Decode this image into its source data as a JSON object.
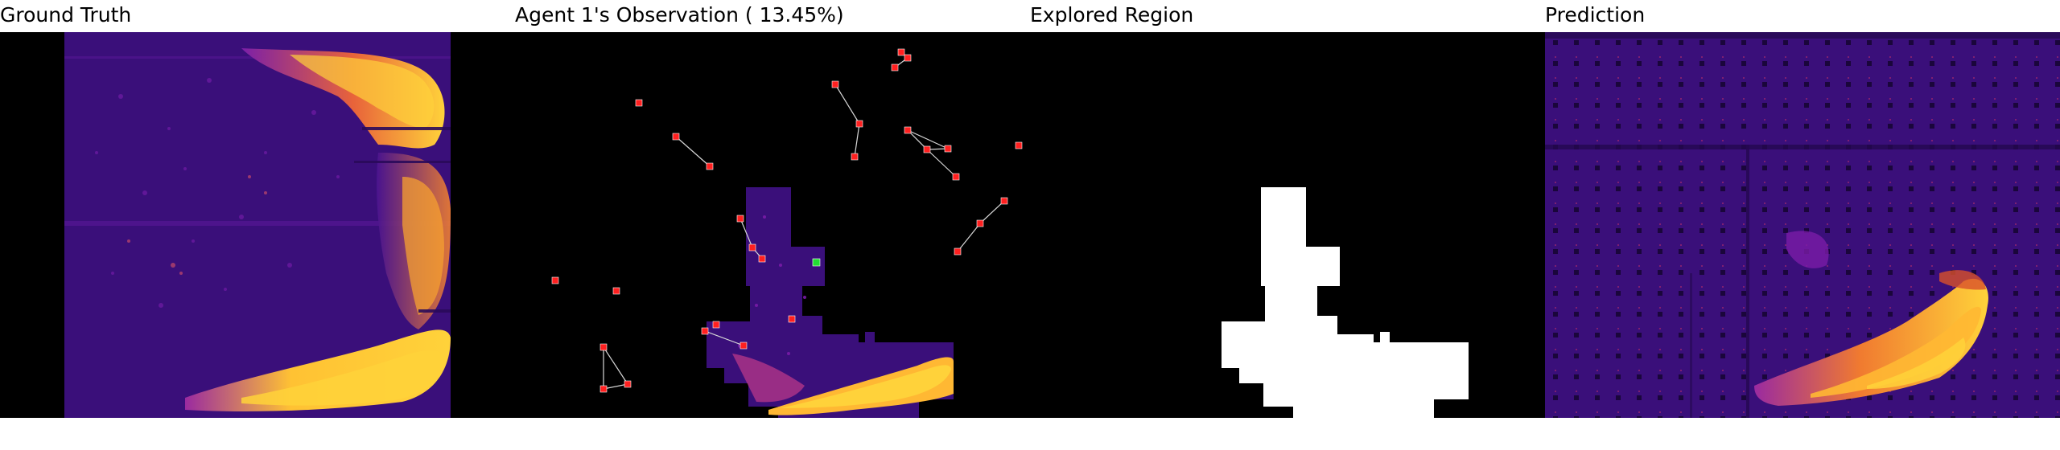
{
  "panels": {
    "ground_truth": {
      "title": "Ground Truth"
    },
    "observation": {
      "title": "Agent 1's Observation ( 13.45%)",
      "coverage_percent": 13.45
    },
    "explored": {
      "title": "Explored Region"
    },
    "prediction": {
      "title": "Prediction"
    }
  },
  "colors": {
    "background": "#000000",
    "field_low": "#3a0f7a",
    "field_mid": "#7b1fa8",
    "field_high": "#e8633a",
    "field_peak": "#ffd23a",
    "agent_marker": "#ff2020",
    "self_marker": "#22dd33",
    "link_line": "#d8d8d8",
    "explored_fill": "#ffffff"
  }
}
